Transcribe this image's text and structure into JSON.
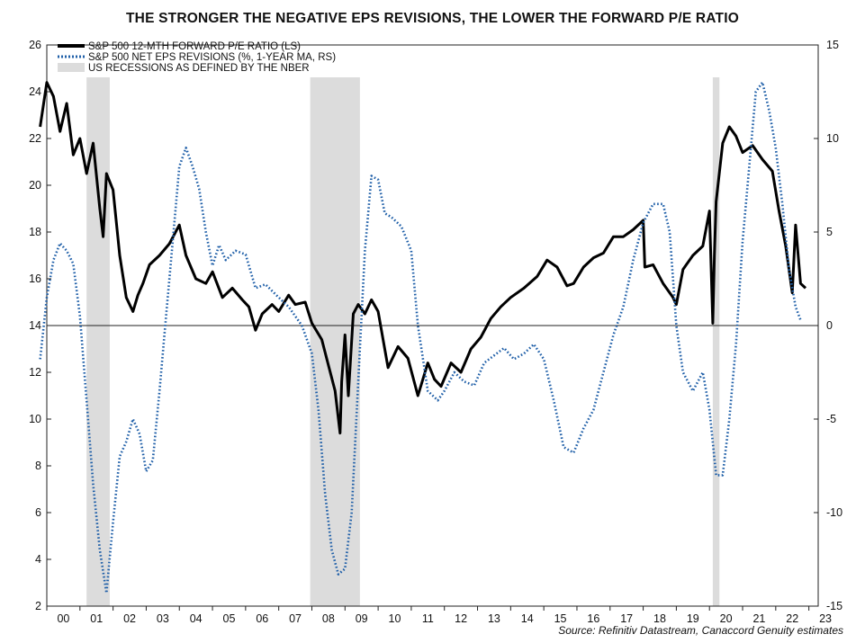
{
  "chart_data": {
    "type": "line",
    "title": "THE STRONGER THE NEGATIVE EPS REVISIONS, THE LOWER THE FORWARD P/E RATIO",
    "source": "Source: Refinitiv Datastream, Canaccord Genuity estimates",
    "x_tick_labels": [
      "00",
      "01",
      "02",
      "03",
      "04",
      "05",
      "06",
      "07",
      "08",
      "09",
      "10",
      "11",
      "12",
      "13",
      "14",
      "15",
      "16",
      "17",
      "18",
      "19",
      "20",
      "21",
      "22",
      "23"
    ],
    "x_range": [
      2000,
      2023.2
    ],
    "y_left": {
      "range": [
        2,
        26
      ],
      "ticks": [
        2,
        4,
        6,
        8,
        10,
        12,
        14,
        16,
        18,
        20,
        22,
        24,
        26
      ]
    },
    "y_right": {
      "range": [
        -15,
        15
      ],
      "ticks": [
        -15,
        -10,
        -5,
        0,
        5,
        10,
        15
      ],
      "tick_labels": [
        "-15",
        "-10",
        "-5",
        "0",
        "5",
        "10",
        "15"
      ]
    },
    "zero_line_right": 0,
    "grid": false,
    "legend_position": "top-left",
    "colors": {
      "pe": "#000000",
      "eps": "#1f5fa8",
      "recession": "#dcdcdc"
    },
    "recessions": [
      [
        2001.2,
        2001.9
      ],
      [
        2007.95,
        2009.45
      ],
      [
        2020.1,
        2020.3
      ]
    ],
    "series": [
      {
        "name": "S&P 500 12-MTH FORWARD P/E RATIO (LS)",
        "axis": "left",
        "style": "solid",
        "x": [
          1999.8,
          2000.0,
          2000.2,
          2000.4,
          2000.6,
          2000.8,
          2001.0,
          2001.2,
          2001.4,
          2001.6,
          2001.7,
          2001.8,
          2002.0,
          2002.2,
          2002.4,
          2002.6,
          2002.75,
          2002.9,
          2003.1,
          2003.4,
          2003.7,
          2004.0,
          2004.2,
          2004.5,
          2004.8,
          2005.0,
          2005.3,
          2005.6,
          2005.9,
          2006.1,
          2006.3,
          2006.5,
          2006.8,
          2007.0,
          2007.3,
          2007.5,
          2007.8,
          2008.0,
          2008.3,
          2008.5,
          2008.7,
          2008.85,
          2008.9,
          2009.0,
          2009.1,
          2009.25,
          2009.4,
          2009.6,
          2009.8,
          2010.0,
          2010.3,
          2010.6,
          2010.9,
          2011.2,
          2011.5,
          2011.7,
          2011.9,
          2012.2,
          2012.5,
          2012.8,
          2013.1,
          2013.4,
          2013.7,
          2014.0,
          2014.4,
          2014.8,
          2015.1,
          2015.4,
          2015.7,
          2015.9,
          2016.2,
          2016.5,
          2016.8,
          2017.1,
          2017.4,
          2017.7,
          2018.0,
          2018.05,
          2018.3,
          2018.6,
          2018.9,
          2019.0,
          2019.2,
          2019.5,
          2019.8,
          2020.0,
          2020.1,
          2020.15,
          2020.2,
          2020.4,
          2020.6,
          2020.8,
          2021.0,
          2021.3,
          2021.6,
          2021.9,
          2022.1,
          2022.3,
          2022.5,
          2022.6,
          2022.75,
          2022.9
        ],
        "values": [
          22.5,
          24.4,
          23.8,
          22.3,
          23.5,
          21.3,
          22.0,
          20.5,
          21.8,
          19.0,
          17.8,
          20.5,
          19.8,
          17.0,
          15.2,
          14.6,
          15.3,
          15.8,
          16.6,
          17.0,
          17.5,
          18.3,
          17.0,
          16.0,
          15.8,
          16.3,
          15.2,
          15.6,
          15.1,
          14.8,
          13.8,
          14.5,
          14.9,
          14.6,
          15.3,
          14.9,
          15.0,
          14.1,
          13.4,
          12.3,
          11.2,
          9.4,
          11.6,
          13.6,
          11.0,
          14.5,
          14.9,
          14.5,
          15.1,
          14.6,
          12.2,
          13.1,
          12.6,
          11.0,
          12.4,
          11.7,
          11.4,
          12.4,
          12.0,
          13.0,
          13.5,
          14.3,
          14.8,
          15.2,
          15.6,
          16.1,
          16.8,
          16.5,
          15.7,
          15.8,
          16.5,
          16.9,
          17.1,
          17.8,
          17.8,
          18.1,
          18.5,
          16.5,
          16.6,
          15.8,
          15.2,
          14.9,
          16.4,
          17.0,
          17.4,
          18.9,
          14.1,
          17.0,
          19.3,
          21.8,
          22.5,
          22.1,
          21.4,
          21.7,
          21.1,
          20.6,
          18.9,
          17.4,
          15.4,
          18.3,
          15.8,
          15.6
        ]
      },
      {
        "name": "S&P 500 NET EPS REVISIONS (%, 1-YEAR MA, RS)",
        "axis": "right",
        "style": "dotted",
        "x": [
          1999.8,
          2000.0,
          2000.2,
          2000.4,
          2000.6,
          2000.8,
          2001.0,
          2001.2,
          2001.4,
          2001.6,
          2001.8,
          2002.0,
          2002.2,
          2002.4,
          2002.6,
          2002.8,
          2003.0,
          2003.2,
          2003.4,
          2003.6,
          2003.8,
          2004.0,
          2004.2,
          2004.4,
          2004.6,
          2004.8,
          2005.0,
          2005.2,
          2005.4,
          2005.7,
          2006.0,
          2006.3,
          2006.6,
          2007.0,
          2007.3,
          2007.7,
          2008.0,
          2008.2,
          2008.4,
          2008.6,
          2008.8,
          2009.0,
          2009.2,
          2009.4,
          2009.6,
          2009.8,
          2010.0,
          2010.2,
          2010.4,
          2010.7,
          2011.0,
          2011.2,
          2011.5,
          2011.8,
          2012.0,
          2012.3,
          2012.6,
          2012.9,
          2013.2,
          2013.5,
          2013.8,
          2014.1,
          2014.4,
          2014.7,
          2015.0,
          2015.3,
          2015.6,
          2015.9,
          2016.2,
          2016.5,
          2016.8,
          2017.1,
          2017.4,
          2017.7,
          2018.0,
          2018.3,
          2018.6,
          2018.8,
          2019.0,
          2019.2,
          2019.5,
          2019.8,
          2020.0,
          2020.2,
          2020.4,
          2020.6,
          2020.8,
          2021.0,
          2021.2,
          2021.4,
          2021.6,
          2021.8,
          2022.0,
          2022.2,
          2022.4,
          2022.6,
          2022.75
        ],
        "values": [
          -1.8,
          1.5,
          3.5,
          4.4,
          4.0,
          3.3,
          0.5,
          -4.0,
          -8.5,
          -12.0,
          -14.3,
          -10.5,
          -7.0,
          -6.2,
          -5.0,
          -5.8,
          -7.8,
          -7.2,
          -3.5,
          0.5,
          4.5,
          8.5,
          9.5,
          8.5,
          7.3,
          5.0,
          3.2,
          4.3,
          3.5,
          4.0,
          3.8,
          2.0,
          2.2,
          1.5,
          1.0,
          0.0,
          -1.5,
          -4.5,
          -9.0,
          -12.0,
          -13.3,
          -13.0,
          -10.0,
          -3.0,
          4.0,
          8.0,
          7.8,
          6.0,
          5.8,
          5.3,
          4.0,
          0.0,
          -3.5,
          -4.0,
          -3.5,
          -2.5,
          -3.0,
          -3.2,
          -2.0,
          -1.6,
          -1.2,
          -1.8,
          -1.5,
          -1.0,
          -1.8,
          -4.0,
          -6.5,
          -6.8,
          -5.5,
          -4.5,
          -2.5,
          -0.5,
          1.0,
          3.5,
          5.5,
          6.5,
          6.5,
          5.0,
          0.0,
          -2.5,
          -3.5,
          -2.5,
          -4.5,
          -8.0,
          -8.0,
          -5.0,
          -1.0,
          4.5,
          8.5,
          12.5,
          13.0,
          11.5,
          9.5,
          6.5,
          3.0,
          1.0,
          0.3
        ]
      },
      {
        "name": "US RECESSIONS AS DEFINED BY THE NBER",
        "axis": "none",
        "style": "band"
      }
    ]
  }
}
